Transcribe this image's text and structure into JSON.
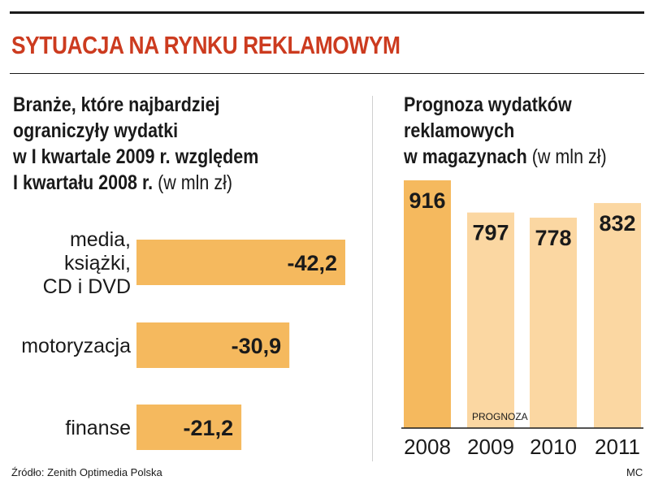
{
  "headline": "SYTUACJA NA RYNKU REKLAMOWYM",
  "left_chart": {
    "title_lines": [
      "Branże, które najbardziej",
      "ograniczyły wydatki",
      "w I kwartale 2009 r. względem",
      "I kwartału 2008 r."
    ],
    "unit": "(w mln zł)"
  },
  "right_chart": {
    "title_lines": [
      "Prognoza wydatków",
      "reklamowych",
      "w magazynach"
    ],
    "unit": "(w mln zł)",
    "prognoza_label": "PROGNOZA"
  },
  "chart_data": [
    {
      "type": "bar",
      "orientation": "horizontal",
      "title": "Branże, które najbardziej ograniczyły wydatki w I kwartale 2009 r. względem I kwartału 2008 r.",
      "unit": "(w mln zł)",
      "categories": [
        [
          "media,",
          "książki,",
          "CD i DVD"
        ],
        [
          "motoryzacja"
        ],
        [
          "finanse"
        ]
      ],
      "values": [
        -42.2,
        -30.9,
        -21.2
      ],
      "value_labels": [
        "-42,2",
        "-30,9",
        "-21,2"
      ],
      "color": "#f5b95e"
    },
    {
      "type": "bar",
      "orientation": "vertical",
      "title": "Prognoza wydatków reklamowych w magazynach",
      "unit": "(w mln zł)",
      "categories": [
        "2008",
        "2009",
        "2010",
        "2011"
      ],
      "values": [
        916,
        797,
        778,
        832
      ],
      "forecast": [
        false,
        true,
        true,
        true
      ],
      "colors": {
        "actual": "#f5b95e",
        "forecast": "#fbd7a2"
      }
    }
  ],
  "footer": {
    "source": "Źródło: Zenith Optimedia Polska",
    "author": "MC"
  }
}
